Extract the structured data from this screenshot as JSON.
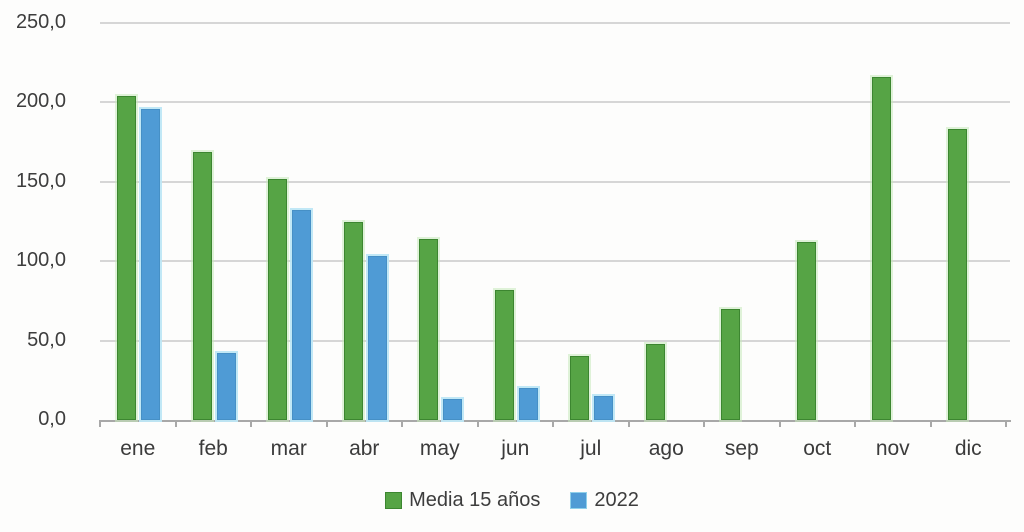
{
  "chart_data": {
    "type": "bar",
    "title": "",
    "xlabel": "",
    "ylabel": "",
    "categories": [
      "ene",
      "feb",
      "mar",
      "abr",
      "may",
      "jun",
      "jul",
      "ago",
      "sep",
      "oct",
      "nov",
      "dic"
    ],
    "series": [
      {
        "name": "Media 15 años",
        "color": "#56a445",
        "values": [
          204,
          169,
          152,
          125,
          114,
          82,
          40,
          48,
          70,
          112,
          216,
          183
        ]
      },
      {
        "name": "2022",
        "color": "#4f9bd5",
        "values": [
          196,
          42,
          132,
          103,
          13,
          20,
          15,
          null,
          null,
          null,
          null,
          null
        ]
      }
    ],
    "ylim": [
      0,
      250
    ],
    "ytick_step": 50,
    "ytick_labels": [
      "0,0",
      "50,0",
      "100,0",
      "150,0",
      "200,0",
      "250,0"
    ],
    "grid": true,
    "legend_position": "bottom",
    "colors": {
      "gridline": "#d6d6d6",
      "axis": "#a8a8a8",
      "text": "#3d3d3d"
    }
  }
}
